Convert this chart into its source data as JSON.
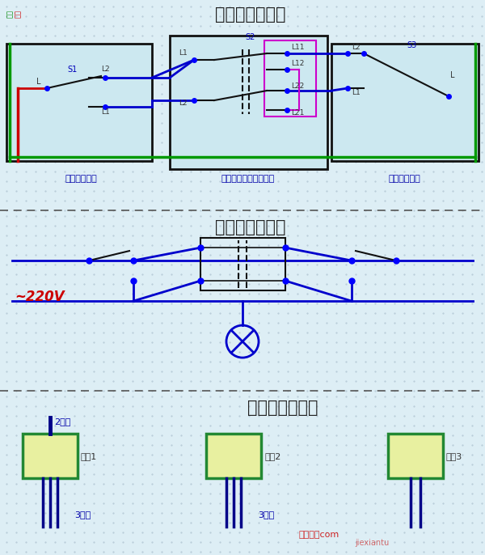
{
  "title1": "三控开关接线图",
  "title2": "三控开关原理图",
  "title3": "三控开关布线图",
  "label_switch1": "单开双控开关",
  "label_switch2": "中途开关（三控开关）",
  "label_switch3": "单开双控开关",
  "label_220v": "~220V",
  "label_2gen": "2根线",
  "label_3gen1": "3根线",
  "label_3gen2": "3根线",
  "label_kaiguan1": "开关1",
  "label_kaiguan2": "开关2",
  "label_kaiguan3": "开关3",
  "label_xianlu": "相线",
  "label_huoxian": "火线",
  "bg_color": "#ddeef5",
  "box_fill": "#cce8f0",
  "box_outline": "#111111",
  "green_line": "#009900",
  "red_line": "#cc0000",
  "blue_line": "#0000cc",
  "magenta_line": "#cc00cc",
  "switch_box_fill": "#e8f0a0",
  "switch_box_outline": "#228833"
}
